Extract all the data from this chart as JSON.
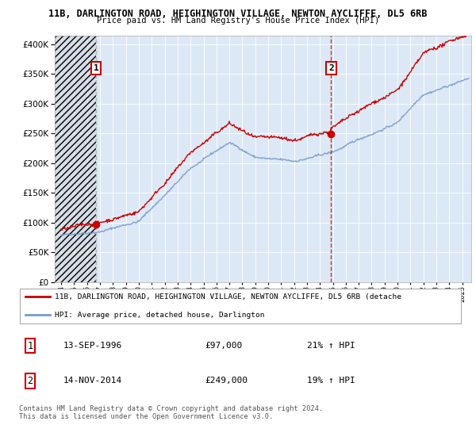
{
  "title_line1": "11B, DARLINGTON ROAD, HEIGHINGTON VILLAGE, NEWTON AYCLIFFE, DL5 6RB",
  "title_line2": "Price paid vs. HM Land Registry's House Price Index (HPI)",
  "ytick_vals": [
    0,
    50000,
    100000,
    150000,
    200000,
    250000,
    300000,
    350000,
    400000
  ],
  "ylim": [
    0,
    415000
  ],
  "sale1_date_num": 1996.71,
  "sale1_price": 97000,
  "sale2_date_num": 2014.87,
  "sale2_price": 249000,
  "legend_line1": "11B, DARLINGTON ROAD, HEIGHINGTON VILLAGE, NEWTON AYCLIFFE, DL5 6RB (detache",
  "legend_line2": "HPI: Average price, detached house, Darlington",
  "table_row1": [
    "1",
    "13-SEP-1996",
    "£97,000",
    "21% ↑ HPI"
  ],
  "table_row2": [
    "2",
    "14-NOV-2014",
    "£249,000",
    "19% ↑ HPI"
  ],
  "footer": "Contains HM Land Registry data © Crown copyright and database right 2024.\nThis data is licensed under the Open Government Licence v3.0.",
  "red_color": "#cc0000",
  "blue_color": "#7799cc",
  "xlim_start": 1993.5,
  "xlim_end": 2025.7
}
